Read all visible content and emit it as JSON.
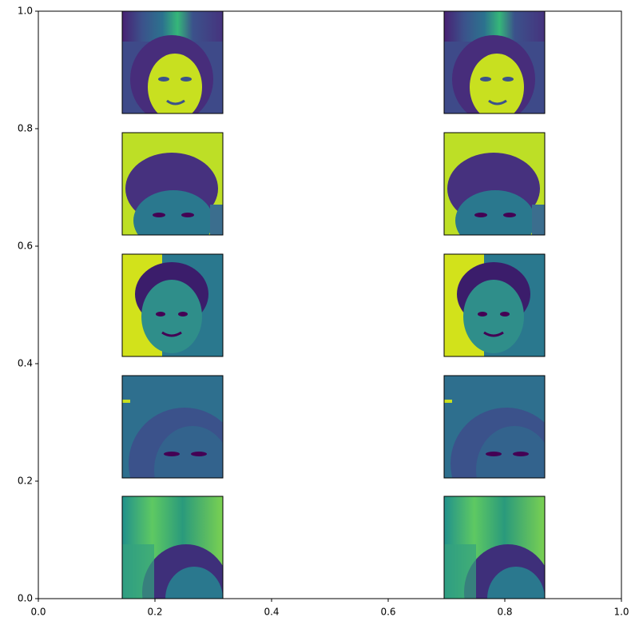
{
  "chart_data": {
    "type": "image_grid",
    "xlim": [
      0,
      1
    ],
    "ylim": [
      0,
      1
    ],
    "xticks": [
      {
        "value": 0,
        "label": "0.0"
      },
      0.2,
      0.4,
      0.6,
      0.8,
      {
        "value": 1,
        "label": "1.0"
      }
    ],
    "yticks": [
      {
        "value": 0,
        "label": "0.0"
      },
      0.2,
      0.4,
      0.6,
      0.8,
      {
        "value": 1,
        "label": "1.0"
      }
    ]
  }
}
